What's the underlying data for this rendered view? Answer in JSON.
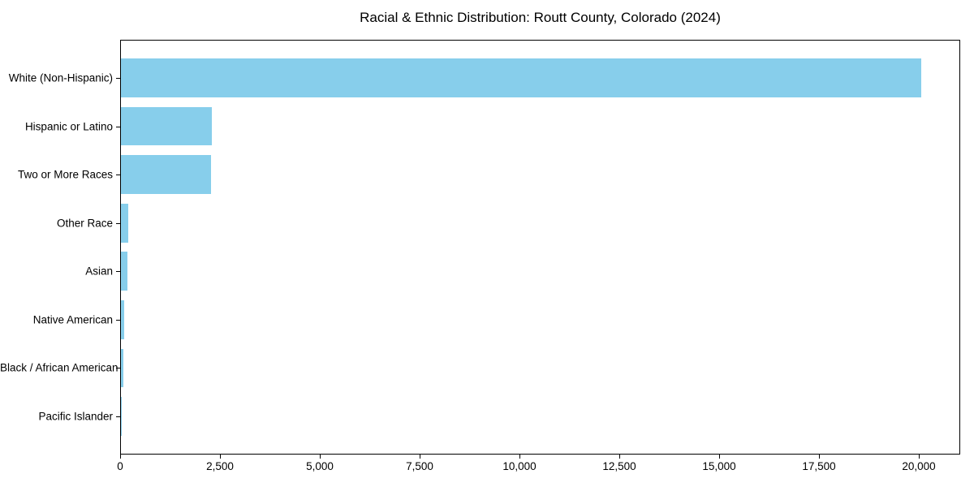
{
  "chart_data": {
    "type": "bar",
    "orientation": "horizontal",
    "title": "Racial & Ethnic Distribution: Routt County, Colorado (2024)",
    "categories": [
      "White (Non-Hispanic)",
      "Hispanic or Latino",
      "Two or More Races",
      "Other Race",
      "Asian",
      "Native American",
      "Black / African American",
      "Pacific Islander"
    ],
    "values": [
      20060,
      2270,
      2255,
      180,
      170,
      90,
      70,
      15
    ],
    "bar_color": "#87CEEB",
    "xlabel": "",
    "ylabel": "",
    "xlim": [
      0,
      21015
    ],
    "x_ticks": [
      0,
      2500,
      5000,
      7500,
      10000,
      12500,
      15000,
      17500,
      20000
    ],
    "x_tick_labels": [
      "0",
      "2,500",
      "5,000",
      "7,500",
      "10,000",
      "12,500",
      "15,000",
      "17,500",
      "20,000"
    ],
    "grid": false,
    "legend": "none",
    "background_color": "#ffffff",
    "axis_color": "#000000"
  }
}
